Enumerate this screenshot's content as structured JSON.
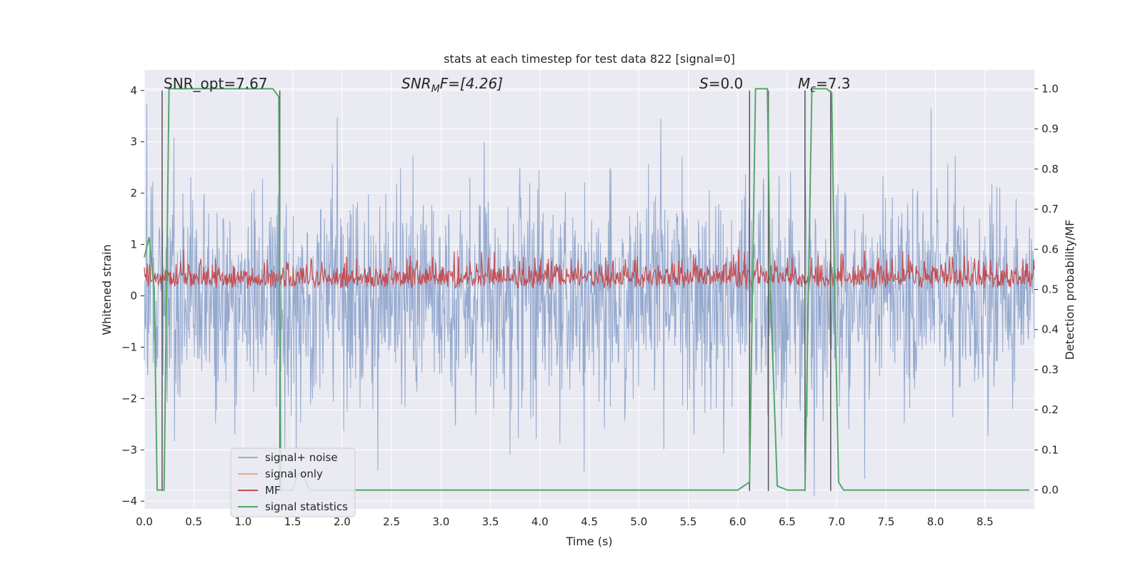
{
  "chart_data": {
    "type": "line",
    "title": "stats at each timestep for test data 822 [signal=0]",
    "xlabel": "Time (s)",
    "ylabel": "Whitened strain",
    "y2label": "Detection probability/MF",
    "xlim": [
      0.0,
      9.0
    ],
    "ylim": [
      -4.15,
      4.4
    ],
    "y2lim": [
      -0.047,
      1.047
    ],
    "xticks": [
      "0.0",
      "0.5",
      "1.0",
      "1.5",
      "2.0",
      "2.5",
      "3.0",
      "3.5",
      "4.0",
      "4.5",
      "5.0",
      "5.5",
      "6.0",
      "6.5",
      "7.0",
      "7.5",
      "8.0",
      "8.5"
    ],
    "yticks": [
      "4",
      "3",
      "2",
      "1",
      "0",
      "−1",
      "−2",
      "−3",
      "−4"
    ],
    "y2ticks": [
      "1.0",
      "0.9",
      "0.8",
      "0.7",
      "0.6",
      "0.5",
      "0.4",
      "0.3",
      "0.2",
      "0.1",
      "0.0"
    ],
    "grid": true,
    "legend_placement": "lower-left",
    "annotations": {
      "snr_opt": "SNR_opt=7.67",
      "snr_mf_a": "SNR",
      "snr_mf_sub": "M",
      "snr_mf_b": "F=[4.26]",
      "s_a": "S",
      "s_b": "=0.0",
      "mc_a": "M",
      "mc_sub": "c",
      "mc_b": "=7.3"
    },
    "series": [
      {
        "name": "signal+ noise",
        "color": "#4c72b0",
        "axis": "left",
        "description_only": "random whitened noise, amplitude roughly within ±4"
      },
      {
        "name": "signal only",
        "color": "#dd8452",
        "axis": "left",
        "values": []
      },
      {
        "name": "MF",
        "color": "#c44e52",
        "axis": "right",
        "range": [
          0.5,
          0.6
        ]
      },
      {
        "name": "signal statistics",
        "color": "#55a868",
        "axis": "right",
        "x": [
          0.0,
          0.05,
          0.1,
          0.13,
          0.17,
          0.2,
          0.25,
          0.5,
          1.0,
          1.3,
          1.36,
          1.38,
          1.43,
          1.5,
          1.55,
          1.6,
          1.67,
          2.0,
          3.0,
          4.0,
          5.0,
          6.0,
          6.12,
          6.18,
          6.3,
          6.33,
          6.4,
          6.5,
          6.68,
          6.75,
          6.85,
          6.9,
          6.95,
          6.98,
          7.02,
          7.07,
          7.5,
          8.0,
          8.5,
          8.95
        ],
        "y": [
          0.58,
          0.63,
          0.5,
          0.0,
          0.0,
          0.0,
          1.0,
          1.0,
          1.0,
          1.0,
          0.98,
          0.0,
          0.0,
          0.0,
          0.04,
          0.04,
          0.0,
          0.0,
          0.0,
          0.0,
          0.0,
          0.0,
          0.02,
          1.0,
          1.0,
          0.5,
          0.01,
          0.0,
          0.0,
          1.0,
          1.0,
          1.0,
          0.99,
          0.5,
          0.02,
          0.0,
          0.0,
          0.0,
          0.0,
          0.0
        ]
      }
    ],
    "vlines_x": [
      0.18,
      1.37,
      6.12,
      6.31,
      6.68,
      6.94
    ],
    "vlines_color": "#555555"
  },
  "colors": {
    "axes_background": "#eaeaf2",
    "grid": "#ffffff",
    "page_background": "#ffffff"
  }
}
